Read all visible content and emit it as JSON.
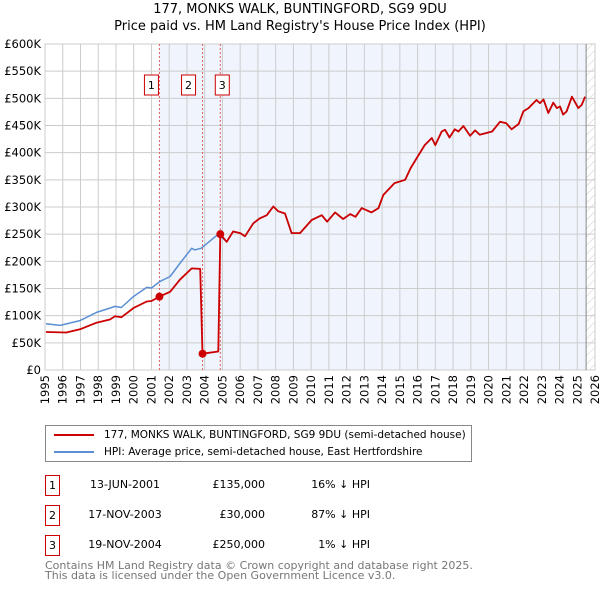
{
  "chart_data": {
    "type": "line",
    "title": "177, MONKS WALK, BUNTINGFORD, SG9 9DU",
    "subtitle": "Price paid vs. HM Land Registry's House Price Index (HPI)",
    "xlim": [
      1995,
      2026
    ],
    "ylim": [
      0,
      600000
    ],
    "x_ticks": [
      "1995",
      "1996",
      "1997",
      "1998",
      "1999",
      "2000",
      "2001",
      "2002",
      "2003",
      "2004",
      "2005",
      "2006",
      "2007",
      "2008",
      "2009",
      "2010",
      "2011",
      "2012",
      "2013",
      "2014",
      "2015",
      "2016",
      "2017",
      "2018",
      "2019",
      "2020",
      "2021",
      "2022",
      "2023",
      "2024",
      "2025",
      "2026"
    ],
    "y_ticks": [
      {
        "v": 0,
        "l": "£0"
      },
      {
        "v": 50000,
        "l": "£50K"
      },
      {
        "v": 100000,
        "l": "£100K"
      },
      {
        "v": 150000,
        "l": "£150K"
      },
      {
        "v": 200000,
        "l": "£200K"
      },
      {
        "v": 250000,
        "l": "£250K"
      },
      {
        "v": 300000,
        "l": "£300K"
      },
      {
        "v": 350000,
        "l": "£350K"
      },
      {
        "v": 400000,
        "l": "£400K"
      },
      {
        "v": 450000,
        "l": "£450K"
      },
      {
        "v": 500000,
        "l": "£500K"
      },
      {
        "v": 550000,
        "l": "£550K"
      },
      {
        "v": 600000,
        "l": "£600K"
      }
    ],
    "grid": true,
    "series": [
      {
        "name": "177, MONKS WALK, BUNTINGFORD, SG9 9DU (semi-detached house)",
        "color": "#cc0000",
        "points": [
          [
            1995.05,
            70000
          ],
          [
            1996.2,
            69000
          ],
          [
            1996.97,
            75000
          ],
          [
            1997.9,
            87000
          ],
          [
            1998.66,
            93000
          ],
          [
            1998.95,
            99000
          ],
          [
            1999.3,
            97000
          ],
          [
            1999.98,
            114000
          ],
          [
            2000.73,
            126000
          ],
          [
            2001.0,
            127000
          ],
          [
            2001.45,
            135000
          ],
          [
            2002.05,
            144000
          ],
          [
            2002.6,
            166000
          ],
          [
            2003.27,
            187000
          ],
          [
            2003.75,
            186000
          ],
          [
            2003.88,
            30000
          ],
          [
            2004.77,
            34000
          ],
          [
            2004.88,
            250000
          ],
          [
            2005.24,
            236000
          ],
          [
            2005.6,
            255000
          ],
          [
            2006.0,
            252000
          ],
          [
            2006.27,
            246000
          ],
          [
            2006.74,
            270000
          ],
          [
            2007.1,
            279000
          ],
          [
            2007.5,
            285000
          ],
          [
            2007.87,
            301000
          ],
          [
            2008.15,
            292000
          ],
          [
            2008.53,
            288000
          ],
          [
            2008.9,
            252000
          ],
          [
            2009.37,
            252000
          ],
          [
            2010.03,
            276000
          ],
          [
            2010.6,
            285000
          ],
          [
            2010.9,
            273000
          ],
          [
            2011.35,
            290000
          ],
          [
            2011.8,
            278000
          ],
          [
            2012.2,
            287000
          ],
          [
            2012.5,
            282000
          ],
          [
            2012.85,
            298000
          ],
          [
            2013.4,
            290000
          ],
          [
            2013.8,
            298000
          ],
          [
            2014.07,
            322000
          ],
          [
            2014.7,
            344000
          ],
          [
            2015.3,
            350000
          ],
          [
            2015.6,
            371000
          ],
          [
            2015.95,
            390000
          ],
          [
            2016.4,
            414000
          ],
          [
            2016.8,
            427000
          ],
          [
            2017.0,
            414000
          ],
          [
            2017.36,
            439000
          ],
          [
            2017.55,
            442000
          ],
          [
            2017.8,
            428000
          ],
          [
            2018.1,
            443000
          ],
          [
            2018.3,
            439000
          ],
          [
            2018.58,
            449000
          ],
          [
            2018.96,
            431000
          ],
          [
            2019.24,
            441000
          ],
          [
            2019.5,
            433000
          ],
          [
            2020.2,
            439000
          ],
          [
            2020.65,
            457000
          ],
          [
            2021.0,
            454000
          ],
          [
            2021.3,
            443000
          ],
          [
            2021.7,
            453000
          ],
          [
            2021.96,
            476000
          ],
          [
            2022.25,
            482000
          ],
          [
            2022.7,
            497000
          ],
          [
            2022.9,
            491000
          ],
          [
            2023.1,
            498000
          ],
          [
            2023.37,
            473000
          ],
          [
            2023.65,
            492000
          ],
          [
            2023.85,
            482000
          ],
          [
            2024.03,
            485000
          ],
          [
            2024.2,
            470000
          ],
          [
            2024.4,
            476000
          ],
          [
            2024.7,
            503000
          ],
          [
            2025.06,
            482000
          ],
          [
            2025.25,
            488000
          ],
          [
            2025.44,
            503000
          ]
        ]
      },
      {
        "name": "HPI: Average price, semi-detached house, East Hertfordshire",
        "color": "#5b8fd4",
        "points": [
          [
            1995.05,
            85000
          ],
          [
            1995.85,
            82000
          ],
          [
            1996.97,
            91000
          ],
          [
            1997.9,
            106000
          ],
          [
            1998.66,
            114000
          ],
          [
            1998.95,
            117000
          ],
          [
            1999.3,
            115000
          ],
          [
            1999.98,
            135000
          ],
          [
            2000.73,
            152000
          ],
          [
            2001.0,
            151000
          ],
          [
            2001.48,
            163000
          ],
          [
            2002.05,
            172000
          ],
          [
            2002.6,
            196000
          ],
          [
            2003.27,
            224000
          ],
          [
            2003.45,
            221000
          ],
          [
            2003.8,
            224000
          ],
          [
            2004.77,
            250000
          ],
          [
            2005.24,
            236000
          ],
          [
            2005.6,
            255000
          ],
          [
            2006.0,
            252000
          ],
          [
            2006.27,
            246000
          ],
          [
            2006.74,
            270000
          ],
          [
            2007.1,
            279000
          ],
          [
            2007.5,
            285000
          ],
          [
            2007.87,
            301000
          ],
          [
            2008.15,
            292000
          ],
          [
            2008.53,
            288000
          ],
          [
            2008.9,
            252000
          ],
          [
            2009.37,
            252000
          ],
          [
            2010.03,
            276000
          ],
          [
            2010.6,
            285000
          ],
          [
            2010.9,
            273000
          ],
          [
            2011.35,
            290000
          ],
          [
            2011.8,
            278000
          ],
          [
            2012.2,
            287000
          ],
          [
            2012.5,
            282000
          ],
          [
            2012.85,
            298000
          ],
          [
            2013.4,
            290000
          ],
          [
            2013.8,
            298000
          ],
          [
            2014.07,
            322000
          ],
          [
            2014.7,
            344000
          ],
          [
            2015.3,
            350000
          ],
          [
            2015.6,
            371000
          ],
          [
            2015.95,
            390000
          ],
          [
            2016.4,
            414000
          ],
          [
            2016.8,
            427000
          ],
          [
            2017.0,
            414000
          ],
          [
            2017.36,
            439000
          ],
          [
            2017.55,
            442000
          ],
          [
            2017.8,
            428000
          ],
          [
            2018.1,
            443000
          ],
          [
            2018.3,
            439000
          ],
          [
            2018.58,
            449000
          ],
          [
            2018.96,
            431000
          ],
          [
            2019.24,
            441000
          ],
          [
            2019.5,
            433000
          ],
          [
            2020.2,
            439000
          ],
          [
            2020.65,
            457000
          ],
          [
            2021.0,
            454000
          ],
          [
            2021.3,
            443000
          ],
          [
            2021.7,
            453000
          ],
          [
            2021.96,
            476000
          ],
          [
            2022.25,
            482000
          ],
          [
            2022.7,
            497000
          ],
          [
            2022.9,
            491000
          ],
          [
            2023.1,
            498000
          ],
          [
            2023.37,
            473000
          ],
          [
            2023.65,
            492000
          ],
          [
            2023.85,
            482000
          ],
          [
            2024.03,
            485000
          ],
          [
            2024.2,
            470000
          ],
          [
            2024.4,
            476000
          ],
          [
            2024.7,
            503000
          ],
          [
            2025.06,
            482000
          ],
          [
            2025.25,
            488000
          ],
          [
            2025.44,
            503000
          ]
        ]
      }
    ],
    "sales": [
      {
        "n": "1",
        "x": 2001.45,
        "y": 135000
      },
      {
        "n": "2",
        "x": 2003.88,
        "y": 30000
      },
      {
        "n": "3",
        "x": 2004.88,
        "y": 250000
      }
    ],
    "data_end": 2025.5,
    "legend_placement": "below"
  },
  "legend": {
    "red": "177, MONKS WALK, BUNTINGFORD, SG9 9DU (semi-detached house)",
    "blue": "HPI: Average price, semi-detached house, East Hertfordshire"
  },
  "sales_table": [
    {
      "num": "1",
      "date": "13-JUN-2001",
      "price": "£135,000",
      "hpi": "16% ↓ HPI"
    },
    {
      "num": "2",
      "date": "17-NOV-2003",
      "price": "£30,000",
      "hpi": "87% ↓ HPI"
    },
    {
      "num": "3",
      "date": "19-NOV-2004",
      "price": "£250,000",
      "hpi": "1% ↓ HPI"
    }
  ],
  "footer": {
    "line1": "Contains HM Land Registry data © Crown copyright and database right 2025.",
    "line2": "This data is licensed under the Open Government Licence v3.0."
  }
}
